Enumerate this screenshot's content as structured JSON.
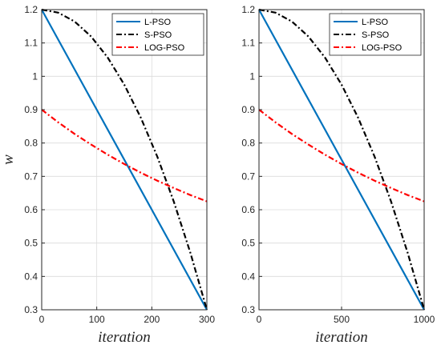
{
  "chart_data": [
    {
      "type": "line",
      "title": "",
      "xlabel": "iteration",
      "ylabel": "w",
      "xlim": [
        0,
        300
      ],
      "ylim": [
        0.3,
        1.2
      ],
      "xticks": [
        0,
        100,
        200,
        300
      ],
      "xtick_labels": [
        "0",
        "100",
        "200",
        "300"
      ],
      "yticks": [
        0.3,
        0.4,
        0.5,
        0.6,
        0.7,
        0.8,
        0.9,
        1.0,
        1.1,
        1.2
      ],
      "ytick_labels": [
        "0.3",
        "0.4",
        "0.5",
        "0.6",
        "0.7",
        "0.8",
        "0.9",
        "1",
        "1.1",
        "1.2"
      ],
      "grid": true,
      "legend_position": "top-right",
      "series": [
        {
          "name": "L-PSO",
          "color": "#0072BD",
          "style": "solid",
          "x": [
            0,
            300
          ],
          "y": [
            1.2,
            0.3
          ]
        },
        {
          "name": "S-PSO",
          "color": "#000000",
          "style": "dashdot",
          "x": [
            0,
            30,
            60,
            90,
            120,
            150,
            180,
            210,
            240,
            270,
            300
          ],
          "y": [
            1.2,
            1.191,
            1.164,
            1.119,
            1.056,
            0.975,
            0.876,
            0.759,
            0.624,
            0.471,
            0.3
          ]
        },
        {
          "name": "LOG-PSO",
          "color": "#FF0000",
          "style": "dashdot",
          "x": [
            0,
            30,
            60,
            90,
            120,
            150,
            180,
            210,
            240,
            270,
            300
          ],
          "y": [
            0.9,
            0.862,
            0.827,
            0.795,
            0.765,
            0.737,
            0.711,
            0.687,
            0.665,
            0.644,
            0.625
          ]
        }
      ]
    },
    {
      "type": "line",
      "title": "",
      "xlabel": "iteration",
      "ylabel": "",
      "xlim": [
        0,
        1000
      ],
      "ylim": [
        0.3,
        1.2
      ],
      "xticks": [
        0,
        500,
        1000
      ],
      "xtick_labels": [
        "0",
        "500",
        "1000"
      ],
      "yticks": [
        0.3,
        0.4,
        0.5,
        0.6,
        0.7,
        0.8,
        0.9,
        1.0,
        1.1,
        1.2
      ],
      "ytick_labels": [
        "0.3",
        "0.4",
        "0.5",
        "0.6",
        "0.7",
        "0.8",
        "0.9",
        "1",
        "1.1",
        "1.2"
      ],
      "grid": true,
      "legend_position": "top-right",
      "series": [
        {
          "name": "L-PSO",
          "color": "#0072BD",
          "style": "solid",
          "x": [
            0,
            1000
          ],
          "y": [
            1.2,
            0.3
          ]
        },
        {
          "name": "S-PSO",
          "color": "#000000",
          "style": "dashdot",
          "x": [
            0,
            100,
            200,
            300,
            400,
            500,
            600,
            700,
            800,
            900,
            1000
          ],
          "y": [
            1.2,
            1.191,
            1.164,
            1.119,
            1.056,
            0.975,
            0.876,
            0.759,
            0.624,
            0.471,
            0.3
          ]
        },
        {
          "name": "LOG-PSO",
          "color": "#FF0000",
          "style": "dashdot",
          "x": [
            0,
            100,
            200,
            300,
            400,
            500,
            600,
            700,
            800,
            900,
            1000
          ],
          "y": [
            0.9,
            0.862,
            0.827,
            0.795,
            0.765,
            0.737,
            0.711,
            0.687,
            0.665,
            0.644,
            0.625
          ]
        }
      ]
    }
  ]
}
